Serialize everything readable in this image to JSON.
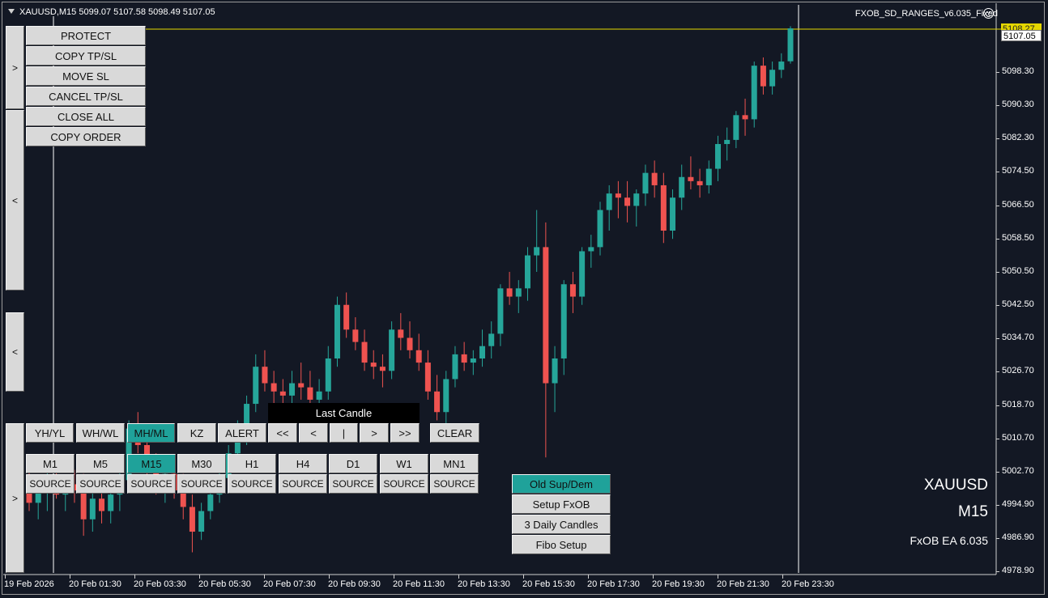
{
  "header": {
    "symbol_info": "XAUUSD,M15  5099.07 5107.58 5098.49 5107.05",
    "indicator": "FXOB_SD_RANGES_v6.035_Fixed"
  },
  "price_axis": {
    "labels": [
      "5098.30",
      "5090.30",
      "5082.30",
      "5074.50",
      "5066.50",
      "5058.50",
      "5050.50",
      "5042.50",
      "5034.70",
      "5026.70",
      "5018.70",
      "5010.70",
      "5002.70",
      "4994.90",
      "4986.90",
      "4978.90"
    ],
    "yellow_badge": "5108.27",
    "current_price": "5107.05"
  },
  "time_axis": {
    "labels": [
      "19 Feb 2026",
      "20 Feb 01:30",
      "20 Feb 03:30",
      "20 Feb 05:30",
      "20 Feb 07:30",
      "20 Feb 09:30",
      "20 Feb 11:30",
      "20 Feb 13:30",
      "20 Feb 15:30",
      "20 Feb 17:30",
      "20 Feb 19:30",
      "20 Feb 21:30",
      "20 Feb 23:30"
    ]
  },
  "colors": {
    "bull": "#26a69a",
    "bear": "#ef5350",
    "background": "#131824",
    "accent": "#1fa29a",
    "yellow_line": "#e5d700"
  },
  "trade_panel": {
    "buttons": [
      "PROTECT",
      "COPY TP/SL",
      "MOVE SL",
      "CANCEL TP/SL",
      "CLOSE ALL",
      "COPY ORDER"
    ]
  },
  "side_toggles": [
    ">",
    "<",
    "<",
    ">"
  ],
  "levels_panel": {
    "buttons": [
      "YH/YL",
      "WH/WL",
      "MH/ML",
      "KZ",
      "ALERT"
    ],
    "active": "MH/ML"
  },
  "last_candle": {
    "title": "Last Candle",
    "nav": [
      "<<",
      "<",
      "|",
      ">",
      ">>"
    ],
    "clear": "CLEAR"
  },
  "timeframes": {
    "items": [
      "M1",
      "M5",
      "M15",
      "M30",
      "H1",
      "H4",
      "D1",
      "W1",
      "MN1"
    ],
    "active": "M15",
    "source_label": "SOURCE"
  },
  "setup_menu": {
    "buttons": [
      "Old Sup/Dem",
      "Setup FxOB",
      "3 Daily Candles",
      "Fibo Setup"
    ],
    "active": "Old Sup/Dem"
  },
  "watermark": {
    "symbol": "XAUUSD",
    "timeframe": "M15",
    "ea": "FxOB EA 6.035"
  },
  "chart_data": {
    "type": "candlestick",
    "symbol": "XAUUSD",
    "timeframe": "M15",
    "ylim": [
      4975,
      5110
    ],
    "candles": [
      [
        4994.5,
        5001.0,
        4990.0,
        4992.0
      ],
      [
        4992.0,
        4997.0,
        4988.0,
        4995.0
      ],
      [
        4995.0,
        5002.0,
        4990.0,
        4998.5
      ],
      [
        4998.5,
        5002.0,
        4993.0,
        4994.0
      ],
      [
        4994.0,
        4998.0,
        4990.0,
        4996.5
      ],
      [
        4996.5,
        5000.0,
        4992.0,
        4995.0
      ],
      [
        4995.0,
        4999.0,
        4984.0,
        4988.0
      ],
      [
        4988.0,
        4996.0,
        4985.0,
        4993.0
      ],
      [
        4993.0,
        4996.0,
        4987.0,
        4990.0
      ],
      [
        4990.0,
        4997.0,
        4987.0,
        4994.0
      ],
      [
        4994.0,
        5000.0,
        4990.0,
        4997.5
      ],
      [
        4997.5,
        5012.0,
        4995.0,
        5010.0
      ],
      [
        5010.0,
        5014.0,
        5004.0,
        5006.0
      ],
      [
        5006.0,
        5010.0,
        4997.0,
        5000.0
      ],
      [
        5000.0,
        5004.0,
        4994.0,
        4997.0
      ],
      [
        4997.0,
        5002.0,
        4992.0,
        4999.0
      ],
      [
        4999.0,
        5002.0,
        4993.0,
        4995.0
      ],
      [
        4995.0,
        4999.0,
        4988.0,
        4991.0
      ],
      [
        4991.0,
        4994.0,
        4980.0,
        4985.0
      ],
      [
        4985.0,
        4992.0,
        4983.0,
        4990.0
      ],
      [
        4990.0,
        4996.0,
        4988.0,
        4994.0
      ],
      [
        4994.0,
        5000.0,
        4992.0,
        4998.0
      ],
      [
        4998.0,
        5006.0,
        4996.0,
        5004.0
      ],
      [
        5004.0,
        5012.0,
        5002.0,
        5010.0
      ],
      [
        5010.0,
        5018.0,
        5006.0,
        5016.0
      ],
      [
        5016.0,
        5028.0,
        5014.0,
        5025.0
      ],
      [
        5025.0,
        5029.0,
        5019.0,
        5021.0
      ],
      [
        5021.0,
        5024.0,
        5016.0,
        5019.0
      ],
      [
        5019.0,
        5022.0,
        5015.0,
        5018.0
      ],
      [
        5018.0,
        5024.0,
        5016.0,
        5021.0
      ],
      [
        5021.0,
        5026.0,
        5017.0,
        5020.0
      ],
      [
        5020.0,
        5024.0,
        5015.0,
        5017.0
      ],
      [
        5017.0,
        5022.0,
        5014.0,
        5019.0
      ],
      [
        5019.0,
        5030.0,
        5017.0,
        5027.0
      ],
      [
        5027.0,
        5042.0,
        5025.0,
        5040.0
      ],
      [
        5040.0,
        5043.0,
        5032.0,
        5034.0
      ],
      [
        5034.0,
        5037.0,
        5029.0,
        5031.0
      ],
      [
        5031.0,
        5034.0,
        5024.0,
        5026.0
      ],
      [
        5026.0,
        5029.0,
        5022.0,
        5025.0
      ],
      [
        5025.0,
        5028.0,
        5020.0,
        5024.0
      ],
      [
        5024.0,
        5036.0,
        5022.0,
        5034.0
      ],
      [
        5034.0,
        5038.0,
        5029.0,
        5032.0
      ],
      [
        5032.0,
        5036.0,
        5027.0,
        5029.0
      ],
      [
        5029.0,
        5033.0,
        5024.0,
        5026.0
      ],
      [
        5026.0,
        5029.0,
        5017.0,
        5019.0
      ],
      [
        5019.0,
        5023.0,
        5012.0,
        5014.0
      ],
      [
        5014.0,
        5024.0,
        5010.0,
        5022.0
      ],
      [
        5022.0,
        5030.0,
        5020.0,
        5028.0
      ],
      [
        5028.0,
        5031.0,
        5024.0,
        5026.0
      ],
      [
        5026.0,
        5029.0,
        5023.0,
        5027.0
      ],
      [
        5027.0,
        5034.0,
        5025.0,
        5030.0
      ],
      [
        5030.0,
        5036.0,
        5027.0,
        5033.0
      ],
      [
        5033.0,
        5045.0,
        5030.0,
        5044.0
      ],
      [
        5044.0,
        5048.0,
        5040.0,
        5042.0
      ],
      [
        5042.0,
        5046.0,
        5038.0,
        5044.0
      ],
      [
        5044.0,
        5054.0,
        5041.0,
        5052.0
      ],
      [
        5052.0,
        5063.0,
        5048.0,
        5054.0
      ],
      [
        5054.0,
        5060.0,
        5003.0,
        5021.0
      ],
      [
        5021.0,
        5030.0,
        5014.0,
        5027.0
      ],
      [
        5027.0,
        5046.0,
        5023.0,
        5045.0
      ],
      [
        5045.0,
        5048.0,
        5038.0,
        5042.0
      ],
      [
        5042.0,
        5054.0,
        5040.0,
        5053.0
      ],
      [
        5053.0,
        5057.0,
        5049.0,
        5054.0
      ],
      [
        5054.0,
        5065.0,
        5052.0,
        5063.0
      ],
      [
        5063.0,
        5069.0,
        5058.0,
        5067.0
      ],
      [
        5067.0,
        5070.0,
        5061.0,
        5066.0
      ],
      [
        5066.0,
        5070.0,
        5060.0,
        5064.0
      ],
      [
        5064.0,
        5068.0,
        5059.0,
        5067.0
      ],
      [
        5067.0,
        5074.0,
        5064.0,
        5072.0
      ],
      [
        5072.0,
        5075.0,
        5066.0,
        5069.0
      ],
      [
        5069.0,
        5072.0,
        5055.0,
        5058.0
      ],
      [
        5058.0,
        5068.0,
        5056.0,
        5066.0
      ],
      [
        5066.0,
        5074.0,
        5063.0,
        5071.0
      ],
      [
        5071.0,
        5076.0,
        5068.0,
        5070.0
      ],
      [
        5070.0,
        5073.0,
        5066.0,
        5069.0
      ],
      [
        5069.0,
        5075.0,
        5067.0,
        5073.0
      ],
      [
        5073.0,
        5081.0,
        5070.0,
        5079.0
      ],
      [
        5079.0,
        5083.0,
        5075.0,
        5080.0
      ],
      [
        5080.0,
        5087.0,
        5078.0,
        5086.0
      ],
      [
        5086.0,
        5090.0,
        5081.0,
        5085.0
      ],
      [
        5085.0,
        5099.0,
        5083.0,
        5098.0
      ],
      [
        5098.0,
        5100.0,
        5091.0,
        5093.0
      ],
      [
        5093.0,
        5099.0,
        5091.0,
        5097.0
      ],
      [
        5097.0,
        5101.0,
        5095.0,
        5099.0
      ],
      [
        5099.07,
        5107.58,
        5098.49,
        5107.05
      ]
    ],
    "candles_format": [
      "open",
      "high",
      "low",
      "close"
    ]
  }
}
